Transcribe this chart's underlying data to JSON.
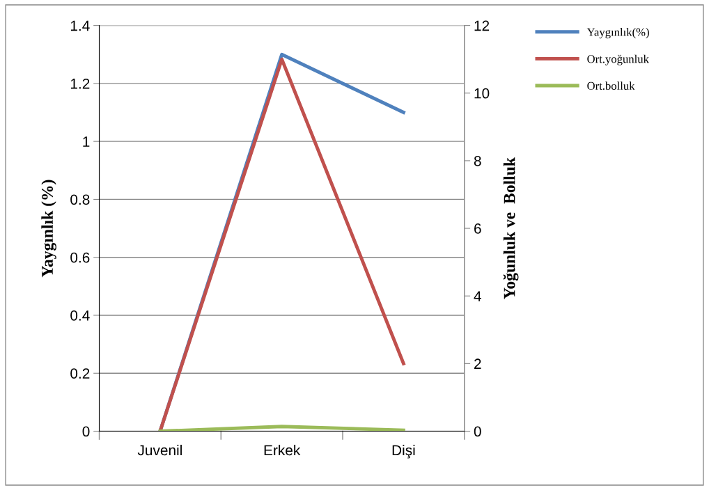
{
  "chart_data": {
    "type": "line",
    "categories": [
      "Juvenil",
      "Erkek",
      "Dişi"
    ],
    "ylabel": "Yaygınlık (%)",
    "y2label": "Yoğunluk ve  Bolluk",
    "series": [
      {
        "name": "Yaygınlık(%)",
        "color": "#4f81bd",
        "values": [
          0,
          1.3,
          1.1
        ]
      },
      {
        "name": "Ort.yoğunluk",
        "color": "#c0504d",
        "values": [
          0,
          11,
          2
        ],
        "axis": "y2"
      },
      {
        "name": "Ort.bolluk",
        "color": "#9bbb59",
        "values": [
          0,
          0.14,
          0.03
        ],
        "axis": "y2"
      }
    ],
    "ylim": [
      0,
      1.4
    ],
    "yticks": [
      0,
      0.2,
      0.4,
      0.6,
      0.8,
      1,
      1.2,
      1.4
    ],
    "y2lim": [
      0,
      12
    ],
    "y2ticks": [
      0,
      2,
      4,
      6,
      8,
      10,
      12
    ],
    "grid": "y",
    "legend": "right",
    "marker": "none",
    "line_style": "solid"
  }
}
